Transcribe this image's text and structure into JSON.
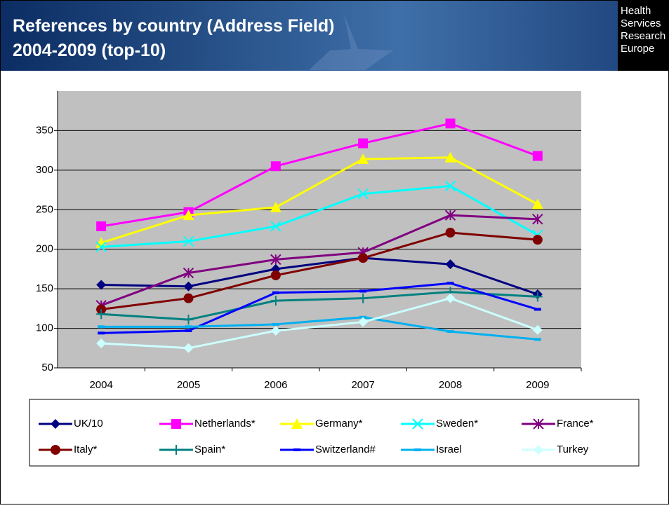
{
  "logo_text": [
    "Health",
    "Services",
    "Research",
    "Europe"
  ],
  "chart_data": {
    "type": "line",
    "title": [
      "References by country (Address Field)",
      "2004-2009 (top-10)"
    ],
    "categories": [
      "2004",
      "2005",
      "2006",
      "2007",
      "2008",
      "2009"
    ],
    "ylim": [
      50,
      400
    ],
    "yticks": [
      50,
      100,
      150,
      200,
      250,
      300,
      350
    ],
    "grid": true,
    "series": [
      {
        "name": "UK/10",
        "color": "#000080",
        "marker": "diamond",
        "values": [
          155,
          153,
          175,
          189,
          181,
          143
        ]
      },
      {
        "name": "Netherlands*",
        "color": "#ff00ff",
        "marker": "square",
        "values": [
          229,
          247,
          305,
          334,
          359,
          318
        ]
      },
      {
        "name": "Germany*",
        "color": "#ffff00",
        "marker": "triangle",
        "values": [
          208,
          243,
          253,
          314,
          316,
          257
        ]
      },
      {
        "name": "Sweden*",
        "color": "#00ffff",
        "marker": "x",
        "values": [
          203,
          210,
          229,
          270,
          280,
          218
        ]
      },
      {
        "name": "France*",
        "color": "#800080",
        "marker": "star",
        "values": [
          129,
          170,
          187,
          196,
          243,
          238
        ]
      },
      {
        "name": "Italy*",
        "color": "#800000",
        "marker": "circle",
        "values": [
          124,
          138,
          167,
          189,
          221,
          212
        ]
      },
      {
        "name": "Spain*",
        "color": "#008080",
        "marker": "plus",
        "values": [
          118,
          111,
          135,
          138,
          146,
          140
        ]
      },
      {
        "name": "Switzerland#",
        "color": "#0000ff",
        "marker": "dash",
        "values": [
          94,
          97,
          145,
          147,
          157,
          124
        ]
      },
      {
        "name": "Israel",
        "color": "#00b0f0",
        "marker": "dash",
        "values": [
          102,
          102,
          105,
          114,
          96,
          86
        ]
      },
      {
        "name": "Turkey",
        "color": "#ccffff",
        "marker": "diamond",
        "values": [
          81,
          75,
          97,
          108,
          138,
          98
        ]
      }
    ]
  }
}
